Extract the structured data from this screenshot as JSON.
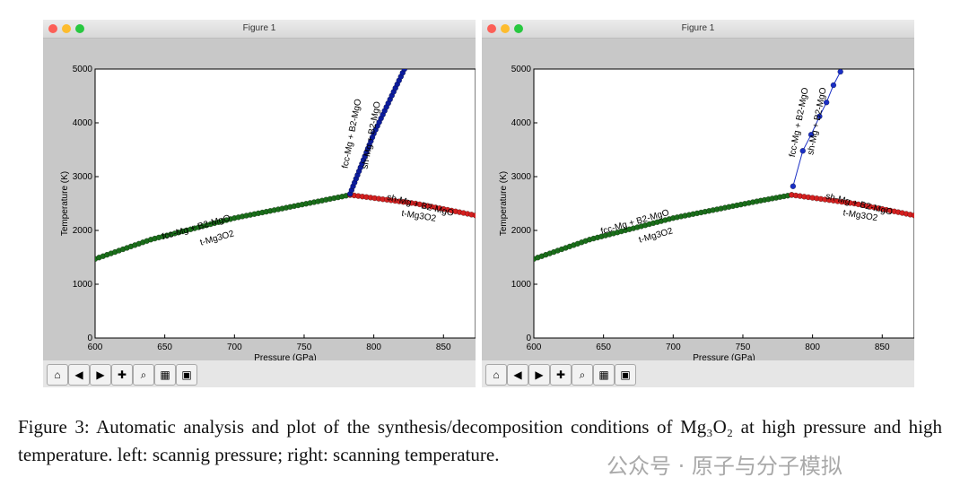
{
  "windows": [
    {
      "title": "Figure 1",
      "chart_data": {
        "type": "scatter",
        "xlabel": "Pressure (GPa)",
        "ylabel": "Temperature (K)",
        "xlim": [
          600,
          873
        ],
        "ylim": [
          0,
          5000
        ],
        "xticks": [
          "600",
          "650",
          "700",
          "750",
          "800",
          "850"
        ],
        "yticks": [
          "0",
          "1000",
          "2000",
          "3000",
          "4000",
          "5000"
        ],
        "grid": false,
        "annotations": [
          "fcc-Mg + B2-MgO",
          "t-Mg3O2",
          "sh-Mg + B2-MgO",
          "t-Mg3O2",
          "fcc-Mg + B2-MgO",
          "sh-Mg + B2-MgO"
        ],
        "series": [
          {
            "color": "#1a6e1a",
            "line": false,
            "points": [
              [
                600,
                1470
              ],
              [
                640,
                1830
              ],
              [
                700,
                2230
              ],
              [
                760,
                2540
              ],
              [
                783,
                2660
              ]
            ]
          },
          {
            "color": "#d42020",
            "line": false,
            "points": [
              [
                783,
                2660
              ],
              [
                830,
                2500
              ],
              [
                873,
                2280
              ]
            ]
          },
          {
            "color": "#0c1c9e",
            "line": false,
            "points": [
              [
                783,
                2680
              ],
              [
                800,
                3800
              ],
              [
                822,
                5000
              ]
            ]
          }
        ]
      }
    },
    {
      "title": "Figure 1",
      "chart_data": {
        "type": "scatter",
        "xlabel": "Pressure (GPa)",
        "ylabel": "Temperature (K)",
        "xlim": [
          600,
          873
        ],
        "ylim": [
          0,
          5000
        ],
        "xticks": [
          "600",
          "650",
          "700",
          "750",
          "800",
          "850"
        ],
        "yticks": [
          "0",
          "1000",
          "2000",
          "3000",
          "4000",
          "5000"
        ],
        "grid": false,
        "annotations": [
          "fcc-Mg + B2-MgO",
          "t-Mg3O2",
          "sh-Mg + B2-MgO",
          "t-Mg3O2",
          "fcc-Mg + B2-MgO",
          "sh-Mg + B2-MgO"
        ],
        "series": [
          {
            "color": "#1a6e1a",
            "line": false,
            "points": [
              [
                600,
                1470
              ],
              [
                640,
                1830
              ],
              [
                700,
                2230
              ],
              [
                760,
                2540
              ],
              [
                785,
                2660
              ]
            ]
          },
          {
            "color": "#d42020",
            "line": false,
            "points": [
              [
                785,
                2660
              ],
              [
                830,
                2500
              ],
              [
                873,
                2280
              ]
            ]
          },
          {
            "color": "#1a2fc4",
            "line": true,
            "points": [
              [
                786,
                2820
              ],
              [
                793,
                3480
              ],
              [
                799,
                3780
              ],
              [
                805,
                4120
              ],
              [
                810,
                4380
              ],
              [
                815,
                4700
              ],
              [
                820,
                4950
              ]
            ]
          }
        ]
      }
    }
  ],
  "toolbar": {
    "buttons": [
      {
        "name": "home-button",
        "icon": "home-icon",
        "glyph": "⌂"
      },
      {
        "name": "back-button",
        "icon": "back-arrow-icon",
        "glyph": "◀"
      },
      {
        "name": "forward-button",
        "icon": "forward-arrow-icon",
        "glyph": "▶"
      },
      {
        "name": "pan-button",
        "icon": "pan-icon",
        "glyph": "✚"
      },
      {
        "name": "zoom-button",
        "icon": "zoom-icon",
        "glyph": "⌕"
      },
      {
        "name": "configure-subplots-button",
        "icon": "subplots-icon",
        "glyph": "▦"
      },
      {
        "name": "save-button",
        "icon": "save-icon",
        "glyph": "▣"
      }
    ]
  },
  "caption": {
    "text": "Figure 3: Automatic analysis and plot of the synthesis/decomposition conditions of Mg₃O₂ at high pressure and high temperature. left: scannig pressure; right: scanning temperature."
  },
  "watermark": {
    "text": "公众号 · 原子与分子模拟"
  }
}
